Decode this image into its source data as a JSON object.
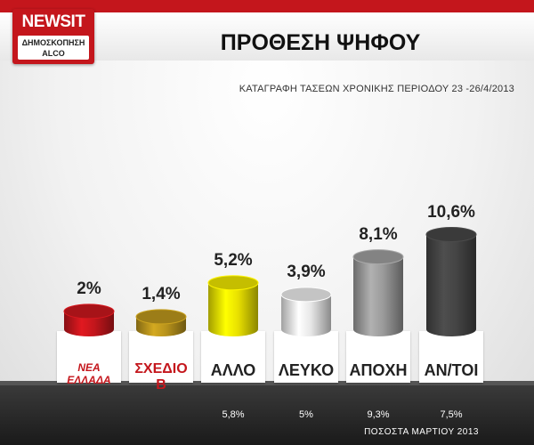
{
  "header": {
    "brand": "NEWSIT",
    "brand_sub_1": "ΔΗΜΟΣΚΟΠΗΣΗ",
    "brand_sub_2": "ALCO",
    "title": "ΠΡΟΘΕΣΗ ΨΗΦΟΥ",
    "subtitle": "ΚΑΤΑΓΡΑΦΗ ΤΑΣΕΩΝ ΧΡΟΝΙΚΗΣ ΠΕΡΙΟΔΟΥ 23 -26/4/2013"
  },
  "footer": {
    "previous_caption": "ΠΟΣΟΣΤΑ ΜΑΡΤΙΟΥ 2013"
  },
  "chart_data": {
    "type": "bar",
    "title": "ΠΡΟΘΕΣΗ ΨΗΦΟΥ",
    "categories": [
      "ΝΕΑ ΕΛΛΑΔΑ",
      "ΣΧΕΔΙΟ Β",
      "ΑΛΛΟ",
      "ΛΕΥΚΟ",
      "ΑΠΟΧΗ",
      "ΑΝ/ΤΟΙ"
    ],
    "values": [
      2,
      1.4,
      5.2,
      3.9,
      8.1,
      10.6
    ],
    "value_labels": [
      "2%",
      "1,4%",
      "5,2%",
      "3,9%",
      "8,1%",
      "10,6%"
    ],
    "previous_labels": [
      "",
      "",
      "5,8%",
      "5%",
      "9,3%",
      "7,5%"
    ],
    "colors": [
      "#c4161c",
      "#b8931c",
      "#e8e000",
      "#e6e6e6",
      "#9a9a9a",
      "#444444"
    ],
    "ylim": [
      0,
      10.6
    ]
  }
}
